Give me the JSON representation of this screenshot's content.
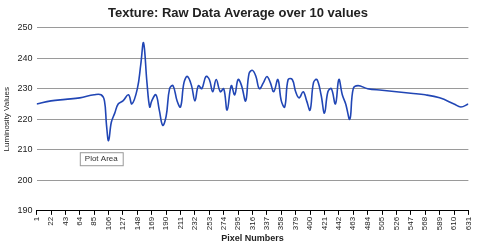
{
  "chart_data": {
    "type": "line",
    "title": "Texture: Raw Data Average over 10 values",
    "x_label": "Pixel Numbers",
    "y_label": "Luminosity Values",
    "annotation": "Plot Area",
    "x": [
      1,
      22,
      43,
      64,
      85,
      95,
      100,
      103,
      106,
      110,
      115,
      120,
      127,
      135,
      140,
      148,
      153,
      157,
      162,
      166,
      169,
      175,
      180,
      185,
      190,
      195,
      200,
      206,
      211,
      216,
      221,
      227,
      232,
      237,
      242,
      248,
      253,
      258,
      263,
      269,
      274,
      279,
      285,
      290,
      295,
      300,
      306,
      311,
      316,
      321,
      326,
      332,
      337,
      342,
      347,
      353,
      358,
      363,
      368,
      374,
      379,
      384,
      390,
      395,
      400,
      405,
      410,
      416,
      421,
      426,
      431,
      437,
      442,
      447,
      452,
      458,
      463,
      470,
      484,
      505,
      526,
      547,
      568,
      589,
      610,
      620,
      631
    ],
    "values": [
      225,
      226,
      226.5,
      227,
      228,
      228,
      226,
      218,
      213,
      219,
      222,
      225,
      226,
      228,
      225,
      230,
      238,
      245,
      232,
      224,
      226,
      228,
      223,
      218,
      221,
      230,
      231,
      226,
      224,
      232,
      234,
      231,
      226,
      231,
      230,
      234,
      233,
      229,
      233,
      229,
      230,
      223,
      231,
      228,
      233,
      231,
      226,
      235,
      236,
      234,
      230,
      232,
      234,
      232,
      229,
      233,
      226,
      224,
      233,
      233,
      229,
      227,
      229,
      226,
      223,
      232,
      233,
      228,
      222,
      229,
      230,
      225,
      233,
      228,
      225,
      220,
      230,
      231,
      230,
      229.5,
      229,
      228.5,
      228,
      227,
      225,
      224,
      225
    ],
    "color": "#2146b5",
    "xlim": [
      1,
      631
    ],
    "xticks": [
      1,
      22,
      43,
      64,
      85,
      106,
      127,
      148,
      169,
      190,
      211,
      232,
      253,
      274,
      295,
      316,
      337,
      358,
      379,
      400,
      421,
      442,
      463,
      484,
      505,
      526,
      547,
      568,
      589,
      610,
      631
    ],
    "ylim": [
      190,
      250
    ],
    "yticks": [
      190,
      200,
      210,
      220,
      230,
      240,
      250
    ],
    "grid": true
  }
}
